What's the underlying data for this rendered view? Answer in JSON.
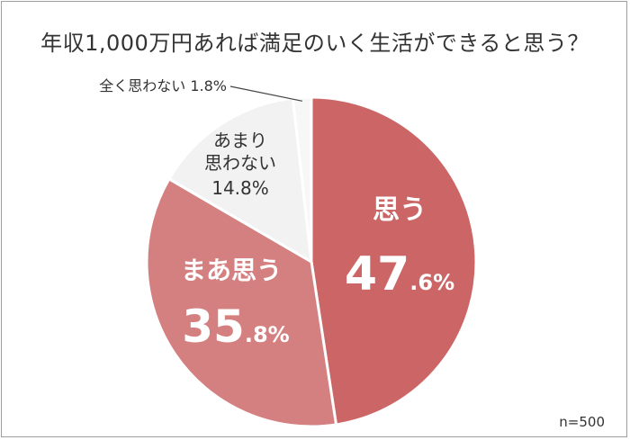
{
  "chart_data": {
    "type": "pie",
    "title": "年収1,000万円あれば満足のいく生活ができると思う？",
    "note": "n=500",
    "slices": [
      {
        "label": "思う",
        "label_lines": [
          "思う"
        ],
        "int": "47",
        "dec": ".6%",
        "value": 47.6,
        "color": "#cc6666",
        "text_color": "#ffffff"
      },
      {
        "label": "まあ思う",
        "label_lines": [
          "まあ思う"
        ],
        "int": "35",
        "dec": ".8%",
        "value": 35.8,
        "color": "#d48080",
        "text_color": "#ffffff"
      },
      {
        "label": "あまり思わない",
        "label_lines": [
          "あまり",
          "思わない"
        ],
        "pct": "14.8%",
        "value": 14.8,
        "color": "#f2f2f2",
        "text_color": "#333333"
      },
      {
        "label": "全く思わない",
        "label_lines": [
          "全く思わない"
        ],
        "pct": "1.8%",
        "value": 1.8,
        "color": "#f7f7f7",
        "text_color": "#333333"
      }
    ]
  }
}
